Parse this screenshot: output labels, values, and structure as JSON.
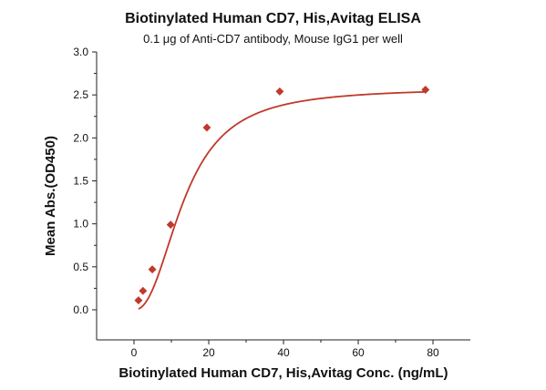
{
  "chart_data": {
    "type": "scatter",
    "title": "Biotinylated Human CD7, His,Avitag ELISA",
    "subtitle": "0.1 μg of Anti-CD7 antibody, Mouse IgG1 per well",
    "xlabel": "Biotinylated Human CD7, His,Avitag Conc. (ng/mL)",
    "ylabel": "Mean Abs.(OD450)",
    "xlim": [
      -10,
      90
    ],
    "ylim": [
      -0.35,
      3.0
    ],
    "xticks": [
      "0",
      "20",
      "40",
      "60",
      "80"
    ],
    "yticks": [
      "0.0",
      "0.5",
      "1.0",
      "1.5",
      "2.0",
      "2.5",
      "3.0"
    ],
    "grid": false,
    "series": [
      {
        "x": [
          1.2,
          2.4,
          4.9,
          9.8,
          19.5,
          39.0,
          78.0
        ],
        "y": [
          0.11,
          0.22,
          0.47,
          0.99,
          2.12,
          2.54,
          2.56
        ]
      }
    ],
    "fit": {
      "type": "4PL",
      "bottom": 0.0,
      "top": 2.58,
      "ec50": 13.5,
      "hill": 2.3
    },
    "colors": {
      "series": "#c0392b",
      "axis": "#222222"
    }
  }
}
